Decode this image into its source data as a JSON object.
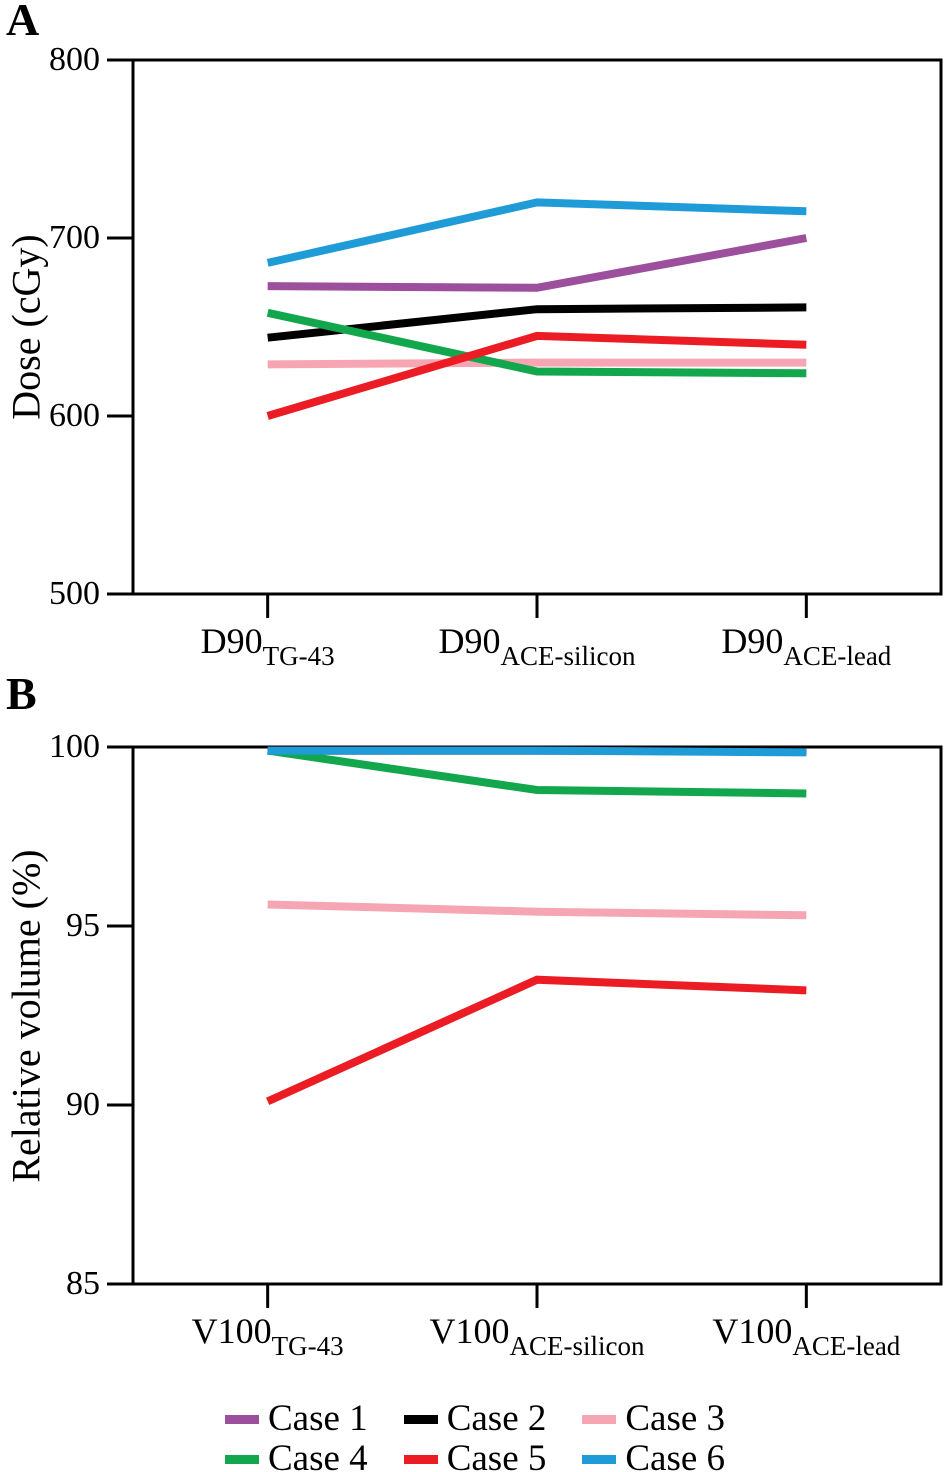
{
  "figure": {
    "panel_labels": [
      "A",
      "B"
    ]
  },
  "chart_data": [
    {
      "type": "line",
      "panel_label": "A",
      "ylabel": "Dose (cGy)",
      "ylim": [
        500,
        800
      ],
      "yticks": [
        500,
        600,
        700,
        800
      ],
      "grid": false,
      "categories": [
        {
          "base": "D90",
          "sub": "TG-43"
        },
        {
          "base": "D90",
          "sub": "ACE-silicon"
        },
        {
          "base": "D90",
          "sub": "ACE-lead"
        }
      ],
      "series": [
        {
          "name": "Case 1",
          "color": "#9C4F9C",
          "values": [
            673,
            672,
            700
          ]
        },
        {
          "name": "Case 2",
          "color": "#000000",
          "values": [
            644,
            660,
            661
          ]
        },
        {
          "name": "Case 3",
          "color": "#F6A6B2",
          "values": [
            629,
            630,
            630
          ]
        },
        {
          "name": "Case 4",
          "color": "#12A64D",
          "values": [
            658,
            625,
            624
          ]
        },
        {
          "name": "Case 5",
          "color": "#EC1C24",
          "values": [
            600,
            645,
            640
          ]
        },
        {
          "name": "Case 6",
          "color": "#1F9BD7",
          "values": [
            686,
            720,
            715
          ]
        }
      ]
    },
    {
      "type": "line",
      "panel_label": "B",
      "ylabel": "Relative volume (%)",
      "ylim": [
        85,
        100
      ],
      "yticks": [
        85,
        90,
        95,
        100
      ],
      "grid": false,
      "categories": [
        {
          "base": "V100",
          "sub": "TG-43"
        },
        {
          "base": "V100",
          "sub": "ACE-silicon"
        },
        {
          "base": "V100",
          "sub": "ACE-lead"
        }
      ],
      "series": [
        {
          "name": "Case 1",
          "color": "#9C4F9C",
          "values": [
            99.9,
            99.9,
            99.9
          ]
        },
        {
          "name": "Case 2",
          "color": "#000000",
          "values": [
            99.9,
            99.9,
            99.9
          ]
        },
        {
          "name": "Case 3",
          "color": "#F6A6B2",
          "values": [
            95.6,
            95.4,
            95.3
          ]
        },
        {
          "name": "Case 4",
          "color": "#12A64D",
          "values": [
            99.9,
            98.8,
            98.7
          ]
        },
        {
          "name": "Case 5",
          "color": "#EC1C24",
          "values": [
            90.1,
            93.5,
            93.2
          ]
        },
        {
          "name": "Case 6",
          "color": "#1F9BD7",
          "values": [
            99.9,
            99.9,
            99.85
          ]
        }
      ]
    }
  ],
  "legend": {
    "items": [
      {
        "label": "Case 1",
        "color": "#9C4F9C"
      },
      {
        "label": "Case 2",
        "color": "#000000"
      },
      {
        "label": "Case 3",
        "color": "#F6A6B2"
      },
      {
        "label": "Case 4",
        "color": "#12A64D"
      },
      {
        "label": "Case 5",
        "color": "#EC1C24"
      },
      {
        "label": "Case 6",
        "color": "#1F9BD7"
      }
    ]
  }
}
